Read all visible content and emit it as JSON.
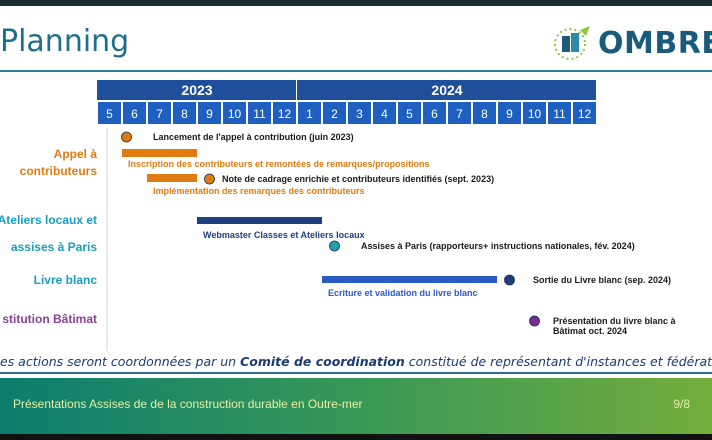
{
  "header": {
    "title": "Planning",
    "logo_text": "OMBRE"
  },
  "chart_data": {
    "type": "timeline",
    "years": [
      {
        "label": "2023",
        "months": [
          "5",
          "6",
          "7",
          "8",
          "9",
          "10",
          "11",
          "12"
        ]
      },
      {
        "label": "2024",
        "months": [
          "1",
          "2",
          "3",
          "4",
          "5",
          "6",
          "7",
          "8",
          "9",
          "10",
          "11",
          "12"
        ]
      }
    ],
    "rows": [
      {
        "lines": [
          "Appel à",
          "contributeurs"
        ],
        "color": "#e07b12"
      },
      {
        "lines": [
          "Ateliers locaux et"
        ],
        "color": "#1a9cc0"
      },
      {
        "lines": [
          "assises à Paris"
        ],
        "color": "#1a9cc0"
      },
      {
        "lines": [
          "Livre blanc"
        ],
        "color": "#1a9cc0"
      },
      {
        "lines": [
          "stitution Bâtimat"
        ],
        "color": "#8a3f9a"
      }
    ],
    "bars": [
      {
        "start": "2023-06",
        "end": "2023-08",
        "color": "#e07b12",
        "label": "Inscription des contributeurs et remontées de remarques/propositions",
        "label_color": "#e07b12"
      },
      {
        "start": "2023-07",
        "end": "2023-08",
        "color": "#e07b12",
        "label": "Implémentation des remarques des contributeurs",
        "label_color": "#e07b12"
      },
      {
        "start": "2023-09",
        "end": "2024-01",
        "color": "#1d3f80",
        "label": "Webmaster Classes et Ateliers locaux",
        "label_color": "#1d3f80"
      },
      {
        "start": "2024-02",
        "end": "2024-08",
        "color": "#2a5bc2",
        "label": "Ecriture et validation du livre blanc",
        "label_color": "#2a5bc2"
      }
    ],
    "milestones": [
      {
        "date": "2023-06",
        "color": "#e07b12",
        "label": "Lancement de l'appel à contribution (juin 2023)"
      },
      {
        "date": "2023-09",
        "color": "#e07b12",
        "label": "Note de cadrage enrichie et contributeurs identifiés (sept. 2023)"
      },
      {
        "date": "2024-02",
        "color": "#1fa1b0",
        "label": "Assises à Paris (rapporteurs+ instructions nationales, fév. 2024)"
      },
      {
        "date": "2024-09",
        "color": "#1d3f80",
        "label": "Sortie du Livre blanc (sep. 2024)"
      },
      {
        "date": "2024-10",
        "color": "#7a2c8f",
        "label": [
          "Présentation du livre blanc à",
          "Bâtimat oct. 2024"
        ]
      }
    ]
  },
  "footnote": {
    "prefix": "es actions seront coordonnées par un ",
    "bold": "Comité de coordination",
    "suffix": " constitué de représentant d'instances et fédérations volontai"
  },
  "footer": {
    "text": "Présentations Assises de de la construction durable en Outre-mer",
    "page": "9/8"
  },
  "colors": {
    "header_blue": "#1f4e9a",
    "month_blue": "#1f5fbf"
  }
}
